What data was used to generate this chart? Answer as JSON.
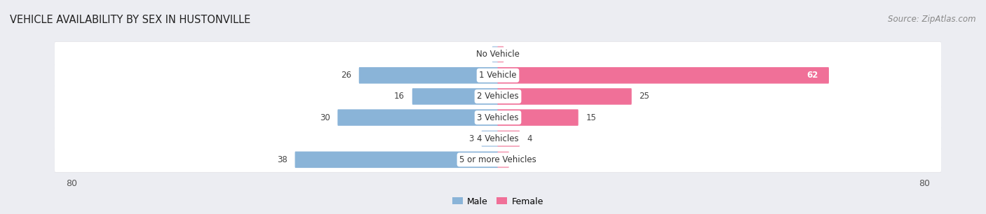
{
  "title": "VEHICLE AVAILABILITY BY SEX IN HUSTONVILLE",
  "source": "Source: ZipAtlas.com",
  "categories": [
    "No Vehicle",
    "1 Vehicle",
    "2 Vehicles",
    "3 Vehicles",
    "4 Vehicles",
    "5 or more Vehicles"
  ],
  "male_values": [
    1,
    26,
    16,
    30,
    3,
    38
  ],
  "female_values": [
    1,
    62,
    25,
    15,
    4,
    2
  ],
  "male_color": "#8ab4d8",
  "female_color": "#f07098",
  "male_color_light": "#b8d0e8",
  "female_color_light": "#f4a0b8",
  "male_label": "Male",
  "female_label": "Female",
  "xlim": 80,
  "bg_color": "#ecedf2",
  "row_color": "#f5f5f8",
  "title_fontsize": 10.5,
  "source_fontsize": 8.5,
  "bar_label_fontsize": 8.5,
  "cat_label_fontsize": 8.5
}
